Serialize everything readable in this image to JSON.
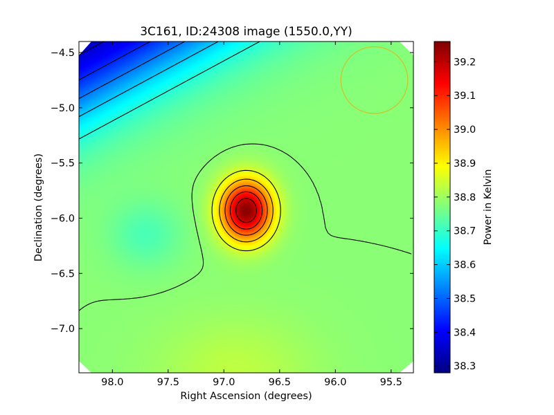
{
  "chart_data": {
    "type": "heatmap",
    "title": "3C161, ID:24308 image (1550.0,YY)",
    "xlabel": "Right Ascension (degrees)",
    "ylabel": "Declination (degrees)",
    "xlim": [
      98.3,
      95.3
    ],
    "ylim": [
      -7.4,
      -4.4
    ],
    "x_ticks": [
      98.0,
      97.5,
      97.0,
      96.5,
      96.0,
      95.5
    ],
    "x_tick_labels": [
      "98.0",
      "97.5",
      "97.0",
      "96.5",
      "96.0",
      "95.5"
    ],
    "y_ticks": [
      -4.5,
      -5.0,
      -5.5,
      -6.0,
      -6.5,
      -7.0
    ],
    "y_tick_labels": [
      "−4.5",
      "−5.0",
      "−5.5",
      "−6.0",
      "−6.5",
      "−7.0"
    ],
    "colorbar": {
      "label": "Power in Kelvin",
      "min": 38.28,
      "max": 39.26,
      "ticks": [
        38.3,
        38.4,
        38.5,
        38.6,
        38.7,
        38.8,
        38.9,
        39.0,
        39.1,
        39.2
      ],
      "tick_labels": [
        "38.3",
        "38.4",
        "38.5",
        "38.6",
        "38.7",
        "38.8",
        "38.9",
        "39.0",
        "39.1",
        "39.2"
      ],
      "colormap": "jet"
    },
    "peak": {
      "ra": 96.8,
      "dec": -5.93,
      "value": 39.25
    },
    "local_minimum": {
      "ra": 97.7,
      "dec": -6.15,
      "value": 38.76
    },
    "circle_marker": {
      "ra": 95.65,
      "dec": -4.75,
      "radius_deg": 0.3,
      "color": "#c8c832"
    },
    "contour_levels": [
      38.36,
      38.44,
      38.52,
      38.6,
      38.68,
      38.78,
      38.86,
      38.94,
      39.02,
      39.1,
      39.18
    ]
  }
}
